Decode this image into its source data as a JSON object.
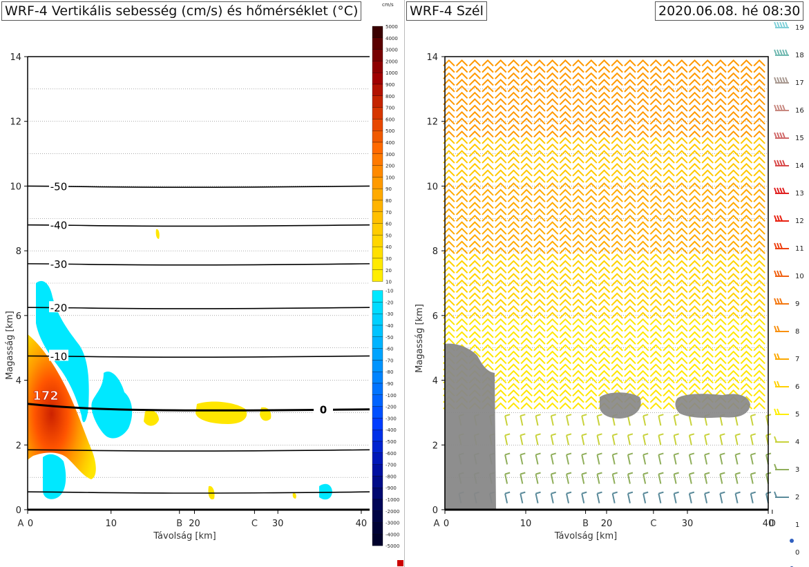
{
  "left_panel": {
    "title": "WRF-4 Vertikális sebesség (cm/s) és hőmérséklet (°C)",
    "colorbar_unit": "cm/s",
    "colorbar_labels": [
      "5000",
      "4000",
      "3000",
      "2000",
      "1000",
      "900",
      "800",
      "700",
      "600",
      "500",
      "400",
      "300",
      "200",
      "100",
      "90",
      "80",
      "70",
      "60",
      "50",
      "40",
      "30",
      "20",
      "10",
      "-10",
      "-20",
      "-30",
      "-40",
      "-50",
      "-60",
      "-70",
      "-80",
      "-90",
      "-100",
      "-200",
      "-300",
      "-400",
      "-500",
      "-600",
      "-700",
      "-800",
      "-900",
      "-1000",
      "-2000",
      "-3000",
      "-4000",
      "-5000"
    ],
    "max_label": "172"
  },
  "right_panel": {
    "title": "WRF-4 Szél",
    "timestamp": "2020.06.08. hé 08:30",
    "speed_legend": [
      "19",
      "18",
      "17",
      "16",
      "15",
      "14",
      "13",
      "12",
      "11",
      "10",
      "9",
      "8",
      "7",
      "6",
      "5",
      "4",
      "3",
      "2",
      "1",
      "0"
    ]
  },
  "chart_data": [
    {
      "type": "heatmap",
      "title": "WRF-4 Vertikális sebesség (cm/s) és hőmérséklet (°C)",
      "xlabel": "Távolság [km]",
      "ylabel": "Magasság [km]",
      "xlim": [
        0,
        41
      ],
      "ylim": [
        0,
        14
      ],
      "x_ticks": [
        0,
        10,
        20,
        30,
        40
      ],
      "y_ticks": [
        0,
        2,
        4,
        6,
        8,
        10,
        12,
        14
      ],
      "section_points": [
        {
          "label": "A",
          "x": 0
        },
        {
          "label": "B",
          "x": 18.2
        },
        {
          "label": "C",
          "x": 27.2
        }
      ],
      "temperature_isotherms": [
        {
          "label": "-50",
          "height_km": 10.0
        },
        {
          "label": "-40",
          "height_km": 8.8
        },
        {
          "label": "-30",
          "height_km": 7.6
        },
        {
          "label": "-20",
          "height_km": 6.25
        },
        {
          "label": "-10",
          "height_km": 4.75
        },
        {
          "label": "0",
          "height_km": 3.1
        },
        {
          "label": "",
          "height_km": 1.85
        },
        {
          "label": "",
          "height_km": 0.55
        }
      ],
      "max_updraft_cm_s": 172,
      "grid": true
    },
    {
      "type": "scatter",
      "title": "WRF-4 Szél",
      "xlabel": "Távolság [km]",
      "ylabel": "Magasság [km]",
      "xlim": [
        0,
        40
      ],
      "ylim": [
        0,
        14
      ],
      "x_ticks": [
        0,
        10,
        20,
        30,
        40
      ],
      "y_ticks": [
        0,
        2,
        4,
        6,
        8,
        10,
        12,
        14
      ],
      "section_points": [
        {
          "label": "A",
          "x": 0
        },
        {
          "label": "B",
          "x": 17.4
        },
        {
          "label": "C",
          "x": 25.8
        },
        {
          "label": "D",
          "x": 40.5
        }
      ],
      "wind_speed_levels": [
        0,
        1,
        2,
        3,
        4,
        5,
        6,
        7,
        8,
        9,
        10,
        11,
        12,
        13,
        14,
        15,
        16,
        17,
        18,
        19
      ],
      "grid": true
    }
  ],
  "colors": {
    "updraft_max": "#cc2200",
    "updraft_mid": "#ff8800",
    "updraft_low": "#ffe600",
    "downdraft": "#00e8ff",
    "cloud_gray": "#888888",
    "barb_low": "#8fae5a",
    "barb_mid": "#ffe000",
    "barb_high": "#ff9900"
  }
}
